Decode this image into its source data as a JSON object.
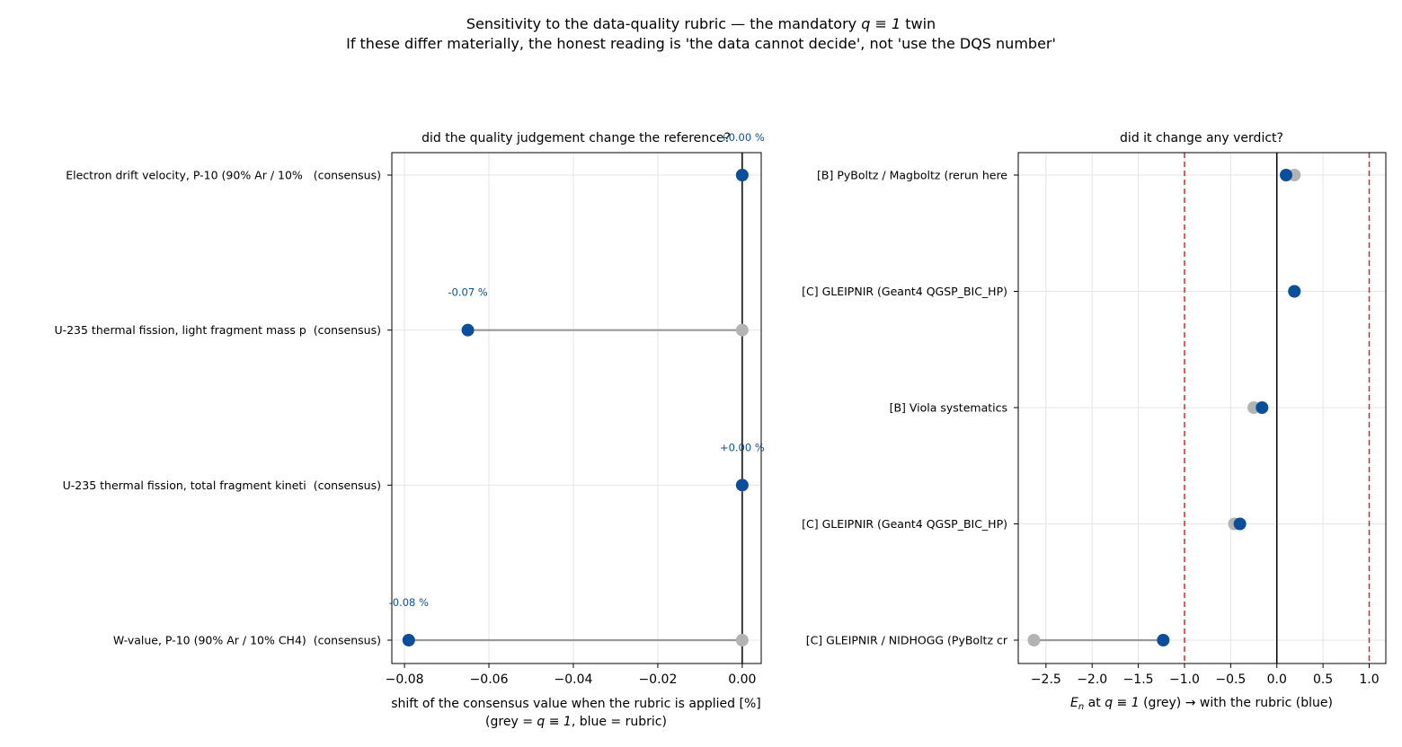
{
  "figure": {
    "title_line1_prefix": "Sensitivity to the data-quality rubric — the mandatory ",
    "title_line1_math": "q ≡ 1",
    "title_line1_suffix": " twin",
    "title_line2": "If these differ materially, the honest reading is 'the data cannot decide', not 'use the DQS number'"
  },
  "colors": {
    "grey": "#b3b3b3",
    "grey_line": "#999999",
    "blue": "#0b4f9c",
    "blue_label": "#0b4f9c",
    "threshold": "#d62728",
    "zero_line": "#000000",
    "grid": "#e5e5e5"
  },
  "chart_data": [
    {
      "type": "scatter",
      "title": "did the quality judgement change the reference?",
      "xlabel_line1": "shift of the consensus value when the rubric is applied [%]",
      "xlabel_line2_prefix": "(grey = ",
      "xlabel_line2_math": "q ≡ 1",
      "xlabel_line2_suffix": ", blue = rubric)",
      "xlim": [
        -0.083,
        0.0045
      ],
      "xticks": [
        -0.08,
        -0.06,
        -0.04,
        -0.02,
        0.0
      ],
      "xtick_labels": [
        "−0.08",
        "−0.06",
        "−0.04",
        "−0.02",
        "0.00"
      ],
      "grid": true,
      "zero_line": 0.0,
      "categories": [
        "Electron drift velocity, P-10 (90% Ar / 10%   (consensus)",
        "U-235 thermal fission, light fragment mass p  (consensus)",
        "U-235 thermal fission, total fragment kineti  (consensus)",
        "W-value, P-10 (90% Ar / 10% CH4)  (consensus)"
      ],
      "series": [
        {
          "name": "q ≡ 1",
          "values": [
            0.0,
            0.0,
            0.0,
            0.0
          ]
        },
        {
          "name": "rubric",
          "values": [
            0.0,
            -0.065,
            0.0,
            -0.079
          ]
        }
      ],
      "annotations": [
        "+0.00 %",
        "-0.07 %",
        "+0.00 %",
        "-0.08 %"
      ]
    },
    {
      "type": "scatter",
      "title": "did it change any verdict?",
      "xlabel_math": "E",
      "xlabel_math_sub": "n",
      "xlabel_mid": " at ",
      "xlabel_math2": "q ≡ 1",
      "xlabel_suffix": " (grey) → with the rubric (blue)",
      "xlim": [
        -2.8,
        1.18
      ],
      "xticks": [
        -2.5,
        -2.0,
        -1.5,
        -1.0,
        -0.5,
        0.0,
        0.5,
        1.0
      ],
      "xtick_labels": [
        "−2.5",
        "−2.0",
        "−1.5",
        "−1.0",
        "−0.5",
        "0.0",
        "0.5",
        "1.0"
      ],
      "grid": true,
      "zero_line": 0.0,
      "thresholds": [
        -1.0,
        1.0
      ],
      "categories": [
        "[B] PyBoltz / Magboltz (rerun here",
        "[C] GLEIPNIR (Geant4 QGSP_BIC_HP)",
        "[B] Viola systematics",
        "[C] GLEIPNIR (Geant4 QGSP_BIC_HP)",
        "[C] GLEIPNIR / NIDHOGG (PyBoltz cr"
      ],
      "series": [
        {
          "name": "q ≡ 1",
          "values": [
            0.19,
            0.19,
            -0.25,
            -0.46,
            -2.63
          ]
        },
        {
          "name": "rubric",
          "values": [
            0.1,
            0.19,
            -0.16,
            -0.4,
            -1.23
          ]
        }
      ]
    }
  ]
}
